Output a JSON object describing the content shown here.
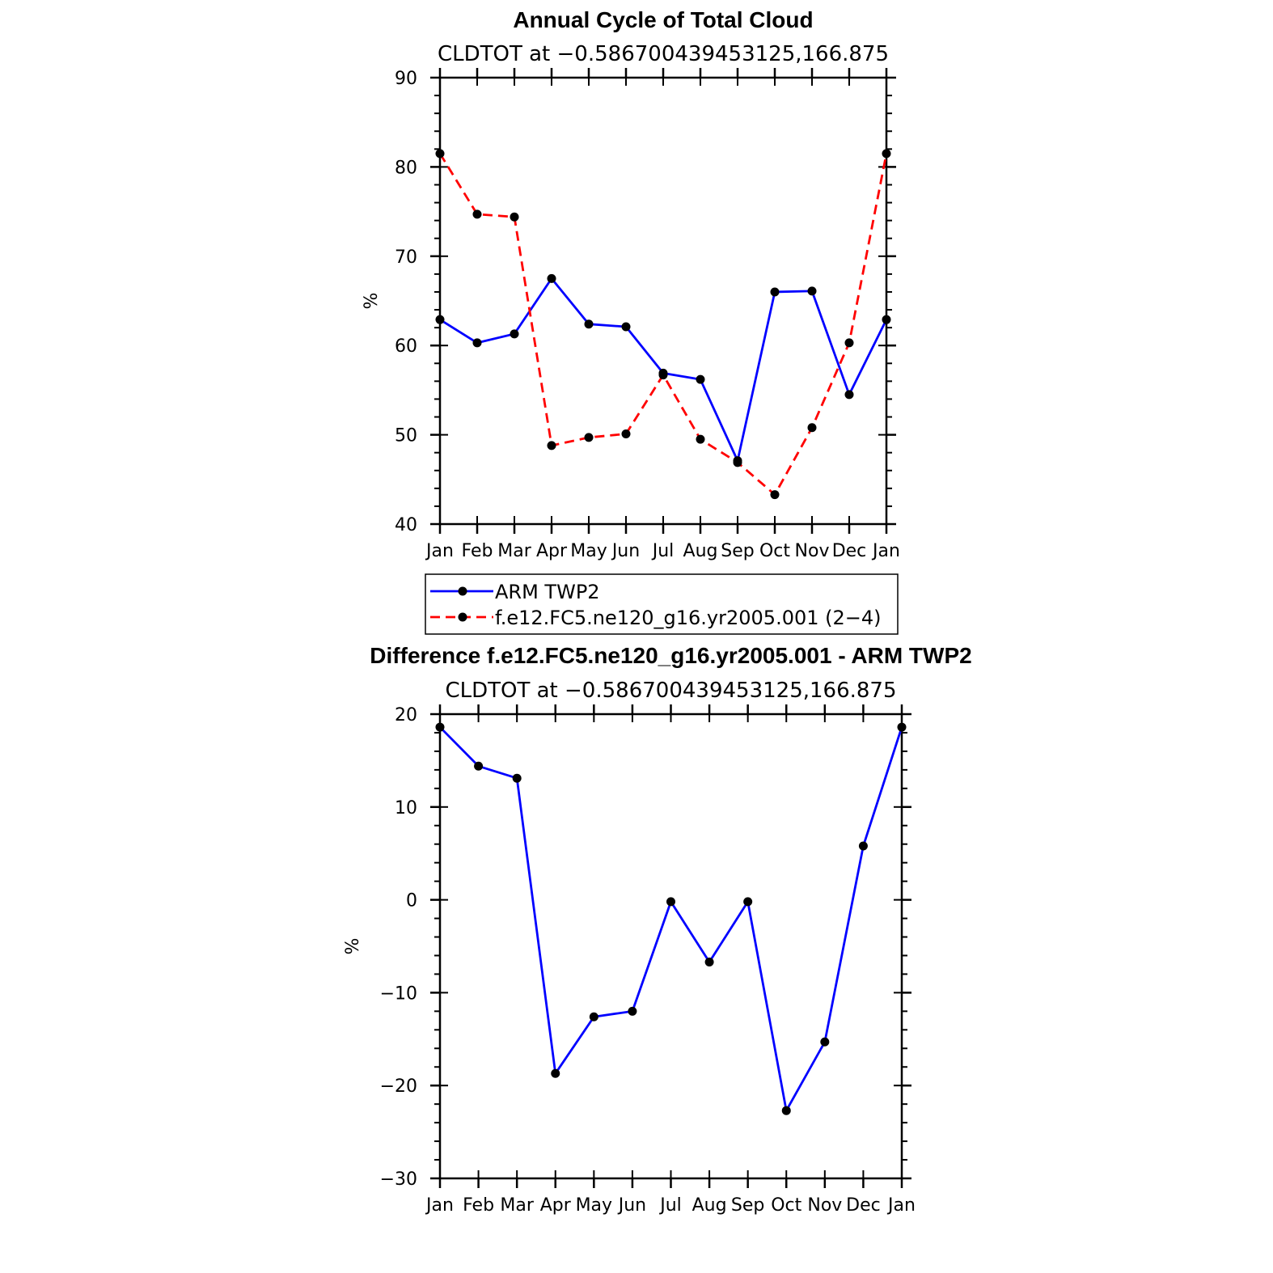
{
  "chart_data": [
    {
      "type": "line",
      "title": "Annual Cycle of Total Cloud",
      "subtitle": "CLDTOT at −0.586700439453125,166.875",
      "xlabel": "",
      "ylabel": "%",
      "categories": [
        "Jan",
        "Feb",
        "Mar",
        "Apr",
        "May",
        "Jun",
        "Jul",
        "Aug",
        "Sep",
        "Oct",
        "Nov",
        "Dec",
        "Jan"
      ],
      "ylim": [
        40,
        90
      ],
      "ymajor": [
        40,
        50,
        60,
        70,
        80,
        90
      ],
      "ytick_labels": [
        "40",
        "50",
        "60",
        "70",
        "80",
        "90"
      ],
      "ytick_minor_step": 2,
      "series": [
        {
          "name": "ARM TWP2",
          "color": "#0000ff",
          "dash": "solid",
          "values": [
            62.9,
            60.3,
            61.3,
            67.5,
            62.4,
            62.1,
            56.9,
            56.2,
            47.1,
            66.0,
            66.1,
            54.5,
            62.9
          ]
        },
        {
          "name": "f.e12.FC5.ne120_g16.yr2005.001 (2−4)",
          "color": "#ff0000",
          "dash": "dashed",
          "values": [
            81.5,
            74.7,
            74.4,
            48.8,
            49.7,
            50.1,
            56.7,
            49.5,
            46.9,
            43.3,
            50.8,
            60.3,
            81.5
          ]
        }
      ],
      "legend": "below"
    },
    {
      "type": "line",
      "title": "Difference f.e12.FC5.ne120_g16.yr2005.001 - ARM TWP2",
      "subtitle": "CLDTOT at −0.586700439453125,166.875",
      "xlabel": "",
      "ylabel": "%",
      "categories": [
        "Jan",
        "Feb",
        "Mar",
        "Apr",
        "May",
        "Jun",
        "Jul",
        "Aug",
        "Sep",
        "Oct",
        "Nov",
        "Dec",
        "Jan"
      ],
      "ylim": [
        -30,
        20
      ],
      "ymajor": [
        -30,
        -20,
        -10,
        0,
        10,
        20
      ],
      "ytick_labels": [
        "−30",
        "−20",
        "−10",
        "0",
        "10",
        "20"
      ],
      "ytick_minor_step": 2,
      "series": [
        {
          "name": "Difference",
          "color": "#0000ff",
          "dash": "solid",
          "values": [
            18.6,
            14.4,
            13.1,
            -18.7,
            -12.6,
            -12.0,
            -0.2,
            -6.7,
            -0.2,
            -22.7,
            -15.3,
            5.8,
            18.6
          ]
        }
      ]
    }
  ]
}
